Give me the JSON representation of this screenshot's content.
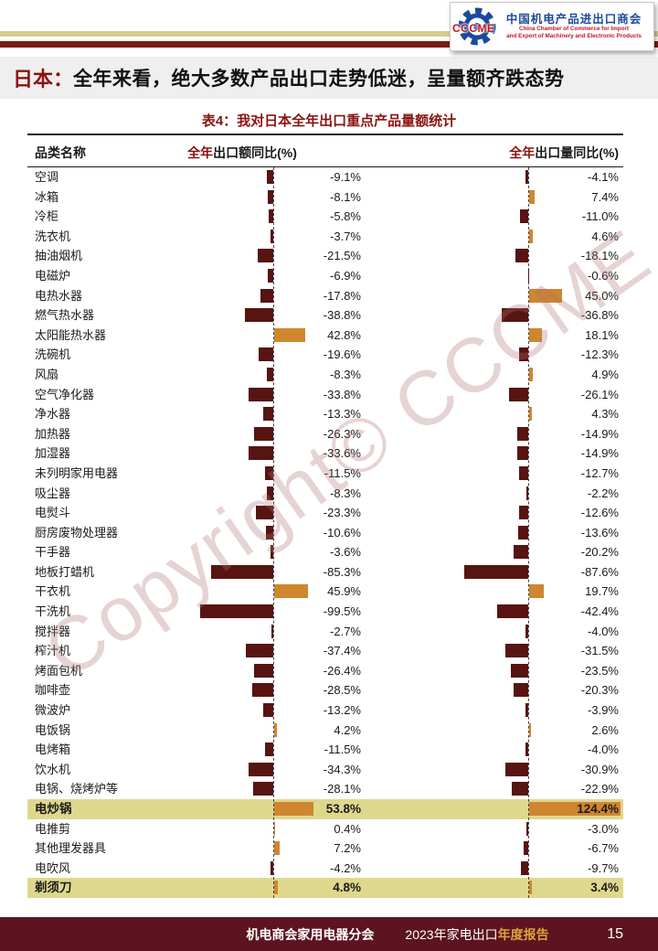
{
  "header": {
    "logo": {
      "acronym": "CCCME",
      "org_cn": "中国机电产品进出口商会",
      "org_en_line1": "China Chamber of Commerce for Import",
      "org_en_line2": "and Export of Machinery and Electronic Products"
    },
    "title_prefix": "日本：",
    "title_rest": "全年来看，绝大多数产品出口走势低迷，呈量额齐跌态势"
  },
  "table": {
    "title": "表4：我对日本全年出口重点产品量额统计",
    "columns": {
      "name": "品类名称",
      "col1_prefix": "全年",
      "col1_rest": "出口额同比(%)",
      "col2_prefix": "全年",
      "col2_rest": "出口量同比(%)"
    }
  },
  "chart_data": {
    "type": "bar",
    "orientation": "horizontal",
    "title": "表4：我对日本全年出口重点产品量额统计",
    "categories": [
      "空调",
      "冰箱",
      "冷柜",
      "洗衣机",
      "抽油烟机",
      "电磁炉",
      "电热水器",
      "燃气热水器",
      "太阳能热水器",
      "洗碗机",
      "风扇",
      "空气净化器",
      "净水器",
      "加热器",
      "加湿器",
      "未列明家用电器",
      "吸尘器",
      "电熨斗",
      "厨房废物处理器",
      "干手器",
      "地板打蜡机",
      "干衣机",
      "干洗机",
      "搅拌器",
      "榨汁机",
      "烤面包机",
      "咖啡壶",
      "微波炉",
      "电饭锅",
      "电烤箱",
      "饮水机",
      "电锅、烧烤炉等",
      "电炒锅",
      "电推剪",
      "其他理发器具",
      "电吹风",
      "剃须刀"
    ],
    "series": [
      {
        "name": "全年出口额同比(%)",
        "values": [
          -9.1,
          -8.1,
          -5.8,
          -3.7,
          -21.5,
          -6.9,
          -17.8,
          -38.8,
          42.8,
          -19.6,
          -8.3,
          -33.8,
          -13.3,
          -26.3,
          -33.6,
          -11.5,
          -8.3,
          -23.3,
          -10.6,
          -3.6,
          -85.3,
          45.9,
          -99.5,
          -2.7,
          -37.4,
          -26.4,
          -28.5,
          -13.2,
          4.2,
          -11.5,
          -34.3,
          -28.1,
          53.8,
          0.4,
          7.2,
          -4.2,
          4.8
        ]
      },
      {
        "name": "全年出口量同比(%)",
        "values": [
          -4.1,
          7.4,
          -11.0,
          4.6,
          -18.1,
          -0.6,
          45.0,
          -36.8,
          18.1,
          -12.3,
          4.9,
          -26.1,
          4.3,
          -14.9,
          -14.9,
          -12.7,
          -2.2,
          -12.6,
          -13.6,
          -20.2,
          -87.6,
          19.7,
          -42.4,
          -4.0,
          -31.5,
          -23.5,
          -20.3,
          -3.9,
          2.6,
          -4.0,
          -30.9,
          -22.9,
          124.4,
          -3.0,
          -6.7,
          -9.7,
          3.4
        ]
      }
    ],
    "value_format": "one_decimal_percent",
    "highlighted_categories": [
      "电炒锅",
      "剃须刀"
    ],
    "zero_axis": "dashed_vertical_line",
    "legend_position": "none"
  },
  "watermark": "Copyright© CCCME",
  "footer": {
    "division": "机电商会家用电器分会",
    "report_prefix": "2023年家电出口",
    "report_suffix": "年度报告",
    "page": "15"
  },
  "colors": {
    "negative_bar": "#571411",
    "positive_bar": "#cf862f",
    "highlight_row": "#ded88d",
    "accent_red": "#8a1410",
    "footer_bg": "#5c1420",
    "stripe_tan": "#d5cd90",
    "stripe_red": "#7a1d12",
    "gold": "#d9a33c",
    "logo_blue": "#1b4a9c",
    "logo_red": "#c01820",
    "watermark": "#b07070"
  }
}
